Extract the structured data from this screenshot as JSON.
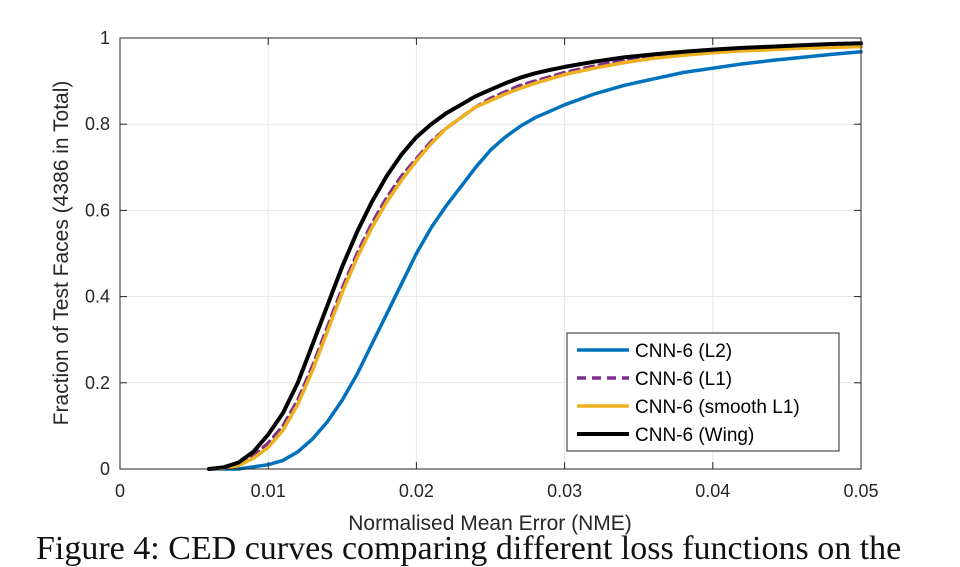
{
  "chart_data": {
    "type": "line",
    "xlabel": "Normalised Mean Error (NME)",
    "ylabel": "Fraction of Test Faces (4386 in Total)",
    "xlim": [
      0,
      0.05
    ],
    "ylim": [
      0,
      1
    ],
    "xticks": [
      "0",
      "0.01",
      "0.02",
      "0.03",
      "0.04",
      "0.05"
    ],
    "yticks": [
      "0",
      "0.2",
      "0.4",
      "0.6",
      "0.8",
      "1"
    ],
    "grid": true,
    "legend_position": "bottom-right",
    "series": [
      {
        "name": "CNN-6 (L2)",
        "color": "#0072BD",
        "style": "solid",
        "x": [
          0.006,
          0.008,
          0.009,
          0.01,
          0.011,
          0.012,
          0.013,
          0.014,
          0.015,
          0.016,
          0.017,
          0.018,
          0.019,
          0.02,
          0.021,
          0.022,
          0.023,
          0.024,
          0.025,
          0.026,
          0.027,
          0.028,
          0.029,
          0.03,
          0.032,
          0.034,
          0.036,
          0.038,
          0.04,
          0.042,
          0.044,
          0.046,
          0.048,
          0.05
        ],
        "y": [
          0.0,
          0.0,
          0.005,
          0.01,
          0.02,
          0.04,
          0.07,
          0.11,
          0.16,
          0.22,
          0.29,
          0.36,
          0.43,
          0.5,
          0.56,
          0.61,
          0.655,
          0.7,
          0.74,
          0.77,
          0.795,
          0.815,
          0.83,
          0.845,
          0.87,
          0.89,
          0.905,
          0.92,
          0.93,
          0.94,
          0.948,
          0.955,
          0.962,
          0.968
        ]
      },
      {
        "name": "CNN-6 (L1)",
        "color": "#7E2F8E",
        "style": "dashed",
        "x": [
          0.006,
          0.007,
          0.008,
          0.009,
          0.01,
          0.011,
          0.012,
          0.013,
          0.014,
          0.015,
          0.016,
          0.017,
          0.018,
          0.019,
          0.02,
          0.021,
          0.022,
          0.023,
          0.024,
          0.025,
          0.026,
          0.027,
          0.028,
          0.029,
          0.03,
          0.032,
          0.034,
          0.036,
          0.038,
          0.04,
          0.042,
          0.044,
          0.046,
          0.048,
          0.05
        ],
        "y": [
          0.0,
          0.003,
          0.012,
          0.03,
          0.06,
          0.1,
          0.16,
          0.24,
          0.33,
          0.42,
          0.5,
          0.57,
          0.63,
          0.68,
          0.72,
          0.76,
          0.79,
          0.815,
          0.84,
          0.86,
          0.875,
          0.89,
          0.9,
          0.91,
          0.92,
          0.935,
          0.948,
          0.958,
          0.965,
          0.97,
          0.974,
          0.977,
          0.98,
          0.982,
          0.984
        ]
      },
      {
        "name": "CNN-6 (smooth L1)",
        "color": "#EDB120",
        "style": "solid",
        "x": [
          0.006,
          0.007,
          0.008,
          0.009,
          0.01,
          0.011,
          0.012,
          0.013,
          0.014,
          0.015,
          0.016,
          0.017,
          0.018,
          0.019,
          0.02,
          0.021,
          0.022,
          0.023,
          0.024,
          0.025,
          0.026,
          0.027,
          0.028,
          0.029,
          0.03,
          0.032,
          0.034,
          0.036,
          0.038,
          0.04,
          0.042,
          0.044,
          0.046,
          0.048,
          0.05
        ],
        "y": [
          0.0,
          0.002,
          0.008,
          0.025,
          0.05,
          0.09,
          0.15,
          0.23,
          0.32,
          0.41,
          0.49,
          0.56,
          0.62,
          0.67,
          0.715,
          0.755,
          0.79,
          0.815,
          0.84,
          0.855,
          0.87,
          0.883,
          0.895,
          0.905,
          0.915,
          0.93,
          0.943,
          0.953,
          0.96,
          0.966,
          0.97,
          0.973,
          0.976,
          0.978,
          0.98
        ]
      },
      {
        "name": "CNN-6 (Wing)",
        "color": "#000000",
        "style": "solid",
        "x": [
          0.006,
          0.007,
          0.008,
          0.009,
          0.01,
          0.011,
          0.012,
          0.013,
          0.014,
          0.015,
          0.016,
          0.017,
          0.018,
          0.019,
          0.02,
          0.021,
          0.022,
          0.023,
          0.024,
          0.025,
          0.026,
          0.027,
          0.028,
          0.029,
          0.03,
          0.032,
          0.034,
          0.036,
          0.038,
          0.04,
          0.042,
          0.044,
          0.046,
          0.048,
          0.05
        ],
        "y": [
          0.0,
          0.004,
          0.015,
          0.04,
          0.08,
          0.13,
          0.2,
          0.29,
          0.38,
          0.47,
          0.55,
          0.62,
          0.68,
          0.73,
          0.77,
          0.8,
          0.825,
          0.845,
          0.865,
          0.88,
          0.895,
          0.908,
          0.918,
          0.926,
          0.933,
          0.945,
          0.955,
          0.962,
          0.968,
          0.973,
          0.977,
          0.98,
          0.983,
          0.986,
          0.988
        ]
      }
    ]
  },
  "caption": {
    "text": "Figure 4: CED curves comparing different loss functions on the"
  }
}
